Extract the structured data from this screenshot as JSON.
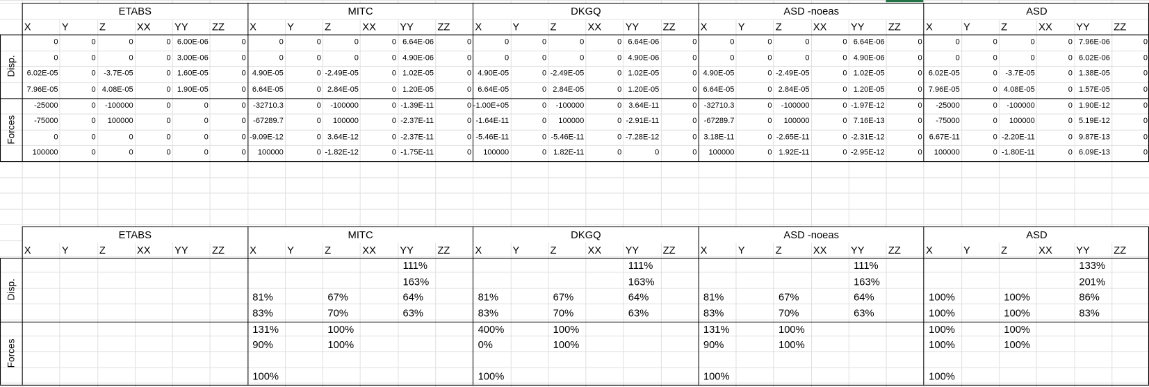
{
  "tables": [
    {
      "blocks": [
        "ETABS",
        "MITC",
        "DKGQ",
        "ASD -noeas",
        "ASD"
      ],
      "columns": [
        "X",
        "Y",
        "Z",
        "XX",
        "YY",
        "ZZ"
      ],
      "groups": [
        "Disp.",
        "Forces"
      ],
      "rows": [
        [
          "0",
          "0",
          "0",
          "0",
          "6.00E-06",
          "0",
          "0",
          "0",
          "0",
          "0",
          "6.64E-06",
          "0",
          "0",
          "0",
          "0",
          "0",
          "6.64E-06",
          "0",
          "0",
          "0",
          "0",
          "0",
          "6.64E-06",
          "0",
          "0",
          "0",
          "0",
          "0",
          "7.96E-06",
          "0"
        ],
        [
          "0",
          "0",
          "0",
          "0",
          "3.00E-06",
          "0",
          "0",
          "0",
          "0",
          "0",
          "4.90E-06",
          "0",
          "0",
          "0",
          "0",
          "0",
          "4.90E-06",
          "0",
          "0",
          "0",
          "0",
          "0",
          "4.90E-06",
          "0",
          "0",
          "0",
          "0",
          "0",
          "6.02E-06",
          "0"
        ],
        [
          "6.02E-05",
          "0",
          "-3.7E-05",
          "0",
          "1.60E-05",
          "0",
          "4.90E-05",
          "0",
          "-2.49E-05",
          "0",
          "1.02E-05",
          "0",
          "4.90E-05",
          "0",
          "-2.49E-05",
          "0",
          "1.02E-05",
          "0",
          "4.90E-05",
          "0",
          "-2.49E-05",
          "0",
          "1.02E-05",
          "0",
          "6.02E-05",
          "0",
          "-3.7E-05",
          "0",
          "1.38E-05",
          "0"
        ],
        [
          "7.96E-05",
          "0",
          "4.08E-05",
          "0",
          "1.90E-05",
          "0",
          "6.64E-05",
          "0",
          "2.84E-05",
          "0",
          "1.20E-05",
          "0",
          "6.64E-05",
          "0",
          "2.84E-05",
          "0",
          "1.20E-05",
          "0",
          "6.64E-05",
          "0",
          "2.84E-05",
          "0",
          "1.20E-05",
          "0",
          "7.96E-05",
          "0",
          "4.08E-05",
          "0",
          "1.57E-05",
          "0"
        ],
        [
          "-25000",
          "0",
          "-100000",
          "0",
          "0",
          "0",
          "-32710.3",
          "0",
          "-100000",
          "0",
          "-1.39E-11",
          "0",
          "-1.00E+05",
          "0",
          "-100000",
          "0",
          "3.64E-11",
          "0",
          "-32710.3",
          "0",
          "-100000",
          "0",
          "-1.97E-12",
          "0",
          "-25000",
          "0",
          "-100000",
          "0",
          "1.90E-12",
          "0"
        ],
        [
          "-75000",
          "0",
          "100000",
          "0",
          "0",
          "0",
          "-67289.7",
          "0",
          "100000",
          "0",
          "-2.37E-11",
          "0",
          "-1.64E-11",
          "0",
          "100000",
          "0",
          "-2.91E-11",
          "0",
          "-67289.7",
          "0",
          "100000",
          "0",
          "7.16E-13",
          "0",
          "-75000",
          "0",
          "100000",
          "0",
          "5.19E-12",
          "0"
        ],
        [
          "0",
          "0",
          "0",
          "0",
          "0",
          "0",
          "-9.09E-12",
          "0",
          "3.64E-12",
          "0",
          "-2.37E-11",
          "0",
          "-5.46E-11",
          "0",
          "-5.46E-11",
          "0",
          "-7.28E-12",
          "0",
          "3.18E-11",
          "0",
          "-2.65E-11",
          "0",
          "-2.31E-12",
          "0",
          "6.67E-11",
          "0",
          "-2.20E-11",
          "0",
          "9.87E-13",
          "0"
        ],
        [
          "100000",
          "0",
          "0",
          "0",
          "0",
          "0",
          "100000",
          "0",
          "-1.82E-12",
          "0",
          "-1.75E-11",
          "0",
          "100000",
          "0",
          "1.82E-11",
          "0",
          "0",
          "0",
          "100000",
          "0",
          "1.92E-11",
          "0",
          "-2.95E-12",
          "0",
          "100000",
          "0",
          "-1.80E-11",
          "0",
          "6.09E-13",
          "0"
        ]
      ]
    },
    {
      "blocks": [
        "ETABS",
        "MITC",
        "DKGQ",
        "ASD -noeas",
        "ASD"
      ],
      "columns": [
        "X",
        "Y",
        "Z",
        "XX",
        "YY",
        "ZZ"
      ],
      "groups": [
        "Disp.",
        "Forces"
      ],
      "rows": [
        [
          null,
          null,
          null,
          null,
          null,
          null,
          null,
          null,
          null,
          null,
          "111%",
          null,
          null,
          null,
          null,
          null,
          "111%",
          null,
          null,
          null,
          null,
          null,
          "111%",
          null,
          null,
          null,
          null,
          null,
          "133%",
          null
        ],
        [
          null,
          null,
          null,
          null,
          null,
          null,
          null,
          null,
          null,
          null,
          "163%",
          null,
          null,
          null,
          null,
          null,
          "163%",
          null,
          null,
          null,
          null,
          null,
          "163%",
          null,
          null,
          null,
          null,
          null,
          "201%",
          null
        ],
        [
          null,
          null,
          null,
          null,
          null,
          null,
          "81%",
          null,
          "67%",
          null,
          "64%",
          null,
          "81%",
          null,
          "67%",
          null,
          "64%",
          null,
          "81%",
          null,
          "67%",
          null,
          "64%",
          null,
          "100%",
          null,
          "100%",
          null,
          "86%",
          null
        ],
        [
          null,
          null,
          null,
          null,
          null,
          null,
          "83%",
          null,
          "70%",
          null,
          "63%",
          null,
          "83%",
          null,
          "70%",
          null,
          "63%",
          null,
          "83%",
          null,
          "70%",
          null,
          "63%",
          null,
          "100%",
          null,
          "100%",
          null,
          "83%",
          null
        ],
        [
          null,
          null,
          null,
          null,
          null,
          null,
          "131%",
          null,
          "100%",
          null,
          null,
          null,
          "400%",
          null,
          "100%",
          null,
          null,
          null,
          "131%",
          null,
          "100%",
          null,
          null,
          null,
          "100%",
          null,
          "100%",
          null,
          null,
          null
        ],
        [
          null,
          null,
          null,
          null,
          null,
          null,
          "90%",
          null,
          "100%",
          null,
          null,
          null,
          "0%",
          null,
          "100%",
          null,
          null,
          null,
          "90%",
          null,
          "100%",
          null,
          null,
          null,
          "100%",
          null,
          "100%",
          null,
          null,
          null
        ],
        [
          null,
          null,
          null,
          null,
          null,
          null,
          null,
          null,
          null,
          null,
          null,
          null,
          null,
          null,
          null,
          null,
          null,
          null,
          null,
          null,
          null,
          null,
          null,
          null,
          null,
          null,
          null,
          null,
          null,
          null
        ],
        [
          null,
          null,
          null,
          null,
          null,
          null,
          "100%",
          null,
          null,
          null,
          null,
          null,
          "100%",
          null,
          null,
          null,
          null,
          null,
          "100%",
          null,
          null,
          null,
          null,
          null,
          "100%",
          null,
          null,
          null,
          null,
          null
        ]
      ]
    }
  ]
}
